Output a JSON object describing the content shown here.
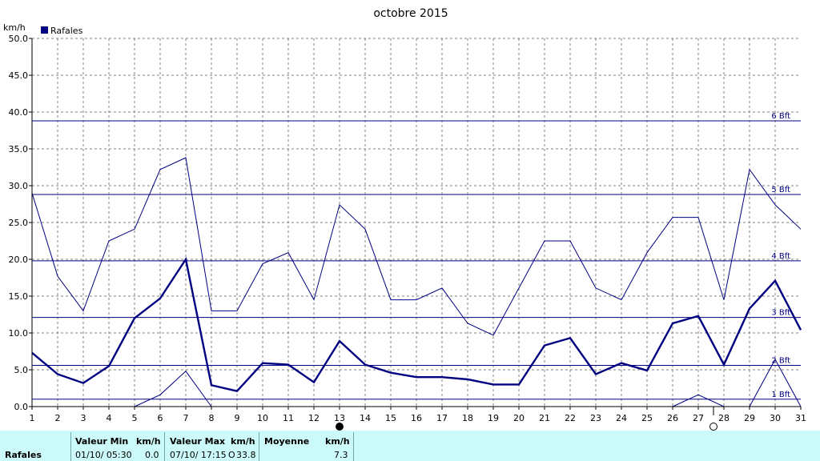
{
  "chart_data": {
    "type": "line",
    "title": "octobre 2015",
    "ylabel": "km/h",
    "xlabel": "",
    "ylim": [
      0,
      50
    ],
    "yticks": [
      "0.0",
      "5.0",
      "10.0",
      "15.0",
      "20.0",
      "25.0",
      "30.0",
      "35.0",
      "40.0",
      "45.0",
      "50.0"
    ],
    "x": [
      1,
      2,
      3,
      4,
      5,
      6,
      7,
      8,
      9,
      10,
      11,
      12,
      13,
      14,
      15,
      16,
      17,
      18,
      19,
      20,
      21,
      22,
      23,
      24,
      25,
      26,
      27,
      28,
      29,
      30,
      31
    ],
    "grid": true,
    "legend": {
      "position": "top-left",
      "label": "Rafales"
    },
    "series": [
      {
        "name": "Rafales",
        "style": "bold",
        "values": [
          7.3,
          4.4,
          3.2,
          5.5,
          12.0,
          14.7,
          20.0,
          2.9,
          2.1,
          5.9,
          5.7,
          3.3,
          8.9,
          5.7,
          4.6,
          4.0,
          4.0,
          3.7,
          3.0,
          3.0,
          8.3,
          9.3,
          4.4,
          5.9,
          4.9,
          11.3,
          12.3,
          5.7,
          13.3,
          17.1,
          10.4
        ]
      },
      {
        "name": "",
        "style": "thin-max",
        "values": [
          29.0,
          17.7,
          13.0,
          22.5,
          24.1,
          32.2,
          33.8,
          13.0,
          13.0,
          19.4,
          20.9,
          14.5,
          27.4,
          24.1,
          14.5,
          14.5,
          16.1,
          11.3,
          9.7,
          16.1,
          22.5,
          22.5,
          16.1,
          14.5,
          20.9,
          25.7,
          25.7,
          14.5,
          32.2,
          27.4,
          24.1
        ]
      },
      {
        "name": "",
        "style": "thin-min",
        "values": [
          null,
          null,
          null,
          null,
          0.0,
          1.6,
          4.8,
          0.0,
          null,
          null,
          null,
          null,
          null,
          null,
          null,
          null,
          null,
          null,
          null,
          null,
          null,
          null,
          null,
          null,
          null,
          0.0,
          1.6,
          0.0,
          0.0,
          6.4,
          0.0
        ]
      }
    ],
    "reference_lines": [
      {
        "label": "1 Bft",
        "value": 1.0
      },
      {
        "label": "2 Bft",
        "value": 5.6
      },
      {
        "label": "3 Bft",
        "value": 12.1
      },
      {
        "label": "4 Bft",
        "value": 19.8
      },
      {
        "label": "5 Bft",
        "value": 28.8
      },
      {
        "label": "6 Bft",
        "value": 38.8
      }
    ],
    "moon_markers": [
      {
        "day": 13,
        "phase": "new"
      },
      {
        "day": 28,
        "phase": "full"
      }
    ],
    "colors": {
      "series": "#000080",
      "grid": "#808080",
      "axis": "#000000"
    }
  },
  "stats": {
    "row_label": "Rafales",
    "min": {
      "header": "Valeur Min",
      "unit": "km/h",
      "date": "01/10/  05:30",
      "value": "0.0"
    },
    "max": {
      "header": "Valeur Max",
      "unit": "km/h",
      "date": "07/10/  17:15",
      "flag": "O",
      "value": "33.8"
    },
    "avg": {
      "header": "Moyenne",
      "unit": "km/h",
      "value": "7.3"
    }
  }
}
